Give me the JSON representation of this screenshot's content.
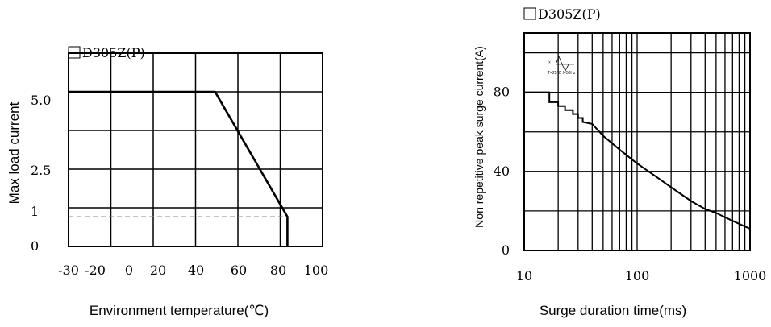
{
  "chart_data": [
    {
      "type": "line",
      "title": "D305Z(P)",
      "xlabel": "Environment temperature(℃)",
      "ylabel": "Max load current",
      "x_ticks": [
        "-30",
        "-20",
        "0",
        "20",
        "40",
        "60",
        "80",
        "100"
      ],
      "y_ticks": [
        "0",
        "1",
        "2.5",
        "5.0"
      ],
      "xlim": [
        -30,
        100
      ],
      "ylim": [
        0,
        6.5
      ],
      "grid": true,
      "series": [
        {
          "values": [
            [
              -30,
              5.2
            ],
            [
              45,
              5.2
            ],
            [
              82,
              1
            ],
            [
              82,
              0
            ]
          ]
        }
      ],
      "reference_lines": [
        {
          "y": 1,
          "style": "dashed"
        }
      ]
    },
    {
      "type": "line",
      "title": "D305Z(P)",
      "xlabel": "Surge duration time(ms)",
      "ylabel": "Non repetitive peak surge current(A)",
      "x_scale": "log",
      "x_ticks": [
        "10",
        "100",
        "1000"
      ],
      "y_ticks": [
        "0",
        "40",
        "80"
      ],
      "xlim": [
        10,
        1000
      ],
      "ylim": [
        0,
        110
      ],
      "grid": true,
      "inset_legend": {
        "line1": "Iₓ",
        "line2": "T=25℃ f=50Hz"
      },
      "series": [
        {
          "values": [
            [
              10,
              80
            ],
            [
              16.7,
              80
            ],
            [
              16.7,
              75
            ],
            [
              20,
              75
            ],
            [
              20,
              73
            ],
            [
              23,
              73
            ],
            [
              23,
              71
            ],
            [
              27,
              71
            ],
            [
              27,
              69
            ],
            [
              30,
              69
            ],
            [
              30,
              67
            ],
            [
              33,
              67
            ],
            [
              33,
              65
            ],
            [
              40,
              64
            ],
            [
              50,
              58
            ],
            [
              70,
              51
            ],
            [
              100,
              44
            ],
            [
              150,
              37
            ],
            [
              200,
              32
            ],
            [
              300,
              25
            ],
            [
              400,
              21
            ],
            [
              500,
              19
            ],
            [
              700,
              15
            ],
            [
              1000,
              11
            ]
          ]
        }
      ]
    }
  ]
}
